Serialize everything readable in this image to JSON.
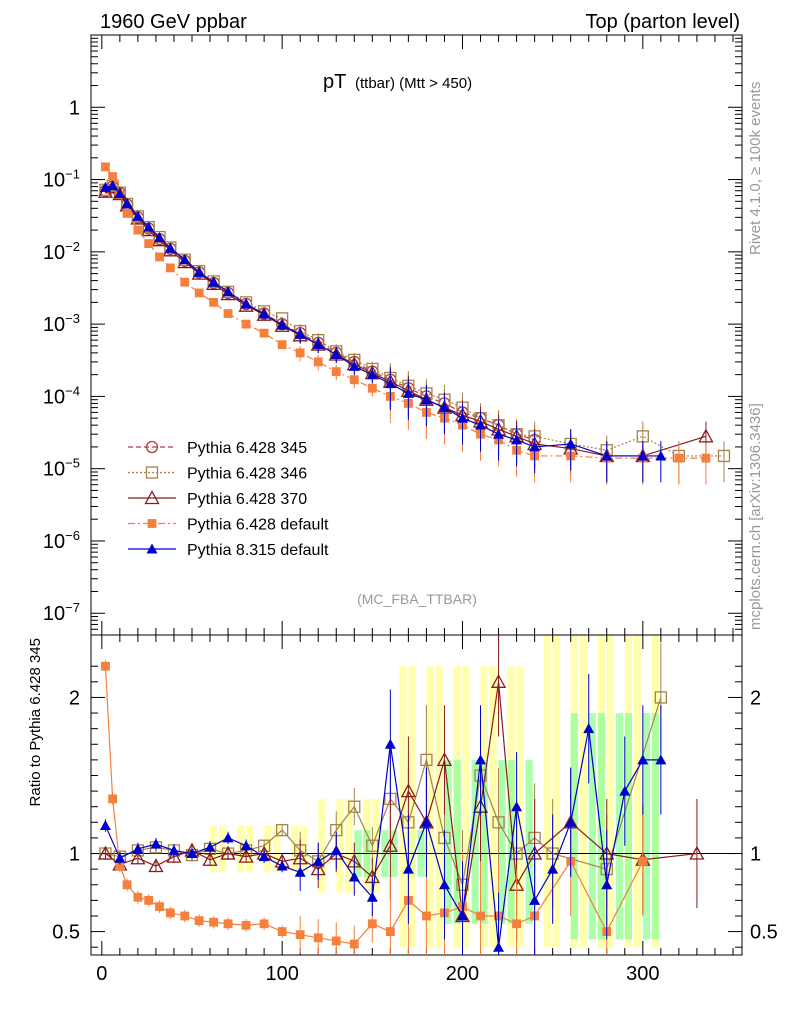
{
  "header": {
    "left_title": "1960 GeV ppbar",
    "right_title": "Top (parton level)"
  },
  "side_labels": {
    "rivet": "Rivet 4.1.0, ≥ 100k events",
    "mcplots": "mcplots.cern.ch [arXiv:1306.3436]"
  },
  "chart_data": [
    {
      "type": "scatter",
      "title": "pT (ttbar) (Mtt > 450)",
      "title_main": "pT",
      "title_sub": "(ttbar) (Mtt > 450)",
      "analysis_tag": "(MC_FBA_TTBAR)",
      "xlabel": "",
      "ylabel": "",
      "yscale": "log",
      "xlim": [
        -6,
        355
      ],
      "ylim": [
        5e-08,
        10
      ],
      "y_tick_labels": [
        "10^-7",
        "10^-6",
        "10^-5",
        "10^-4",
        "10^-3",
        "10^-2",
        "10^-1",
        "1"
      ],
      "legend_position": "bottom-left",
      "series": [
        {
          "name": "Pythia 6.428 345",
          "color": "#b23a48",
          "marker": "open-circle",
          "line": "dashed",
          "x": [
            2,
            6,
            10,
            14,
            20,
            26,
            32,
            38,
            46,
            54,
            62,
            70,
            80,
            90,
            100,
            110,
            120,
            130,
            140,
            150,
            160,
            170,
            180,
            190,
            200,
            210,
            220,
            230,
            240
          ],
          "y": [
            0.07,
            0.08,
            0.065,
            0.045,
            0.03,
            0.021,
            0.015,
            0.011,
            0.0075,
            0.0052,
            0.0037,
            0.0027,
            0.0019,
            0.0014,
            0.001,
            0.00075,
            0.00055,
            0.0004,
            0.0003,
            0.00022,
            0.00017,
            0.00013,
            0.0001,
            8e-05,
            6e-05,
            5e-05,
            4e-05,
            3e-05,
            2.5e-05
          ]
        },
        {
          "name": "Pythia 6.428 346",
          "color": "#a5834a",
          "marker": "open-square",
          "line": "dotted",
          "x": [
            2,
            6,
            10,
            14,
            20,
            26,
            32,
            38,
            46,
            54,
            62,
            70,
            80,
            90,
            100,
            110,
            120,
            130,
            140,
            150,
            160,
            170,
            180,
            190,
            200,
            210,
            220,
            230,
            240,
            260,
            280,
            300,
            320,
            345
          ],
          "y": [
            0.072,
            0.082,
            0.066,
            0.046,
            0.031,
            0.022,
            0.016,
            0.0115,
            0.0078,
            0.0054,
            0.0039,
            0.0028,
            0.002,
            0.0015,
            0.0012,
            0.0008,
            0.0006,
            0.00042,
            0.00032,
            0.00024,
            0.00018,
            0.00014,
            0.00011,
            9e-05,
            7e-05,
            5e-05,
            4e-05,
            3e-05,
            2.8e-05,
            2.2e-05,
            1.8e-05,
            2.8e-05,
            1.5e-05,
            1.5e-05
          ]
        },
        {
          "name": "Pythia 6.428 370",
          "color": "#8b1a1a",
          "marker": "open-triangle",
          "line": "solid",
          "x": [
            2,
            6,
            10,
            14,
            20,
            26,
            32,
            38,
            46,
            54,
            62,
            70,
            80,
            90,
            100,
            110,
            120,
            130,
            140,
            150,
            160,
            170,
            180,
            190,
            200,
            210,
            220,
            230,
            240,
            260,
            280,
            300,
            335
          ],
          "y": [
            0.068,
            0.078,
            0.063,
            0.044,
            0.029,
            0.02,
            0.0145,
            0.0105,
            0.0072,
            0.005,
            0.0036,
            0.0026,
            0.0018,
            0.00135,
            0.00095,
            0.0007,
            0.00052,
            0.00038,
            0.00028,
            0.00021,
            0.00016,
            0.00012,
            9e-05,
            7e-05,
            5.5e-05,
            4.5e-05,
            3.5e-05,
            2.8e-05,
            2.2e-05,
            1.9e-05,
            1.5e-05,
            1.5e-05,
            2.8e-05
          ]
        },
        {
          "name": "Pythia 6.428 default",
          "color": "#f57f3c",
          "marker": "filled-square",
          "line": "dashdot",
          "x": [
            2,
            6,
            10,
            14,
            20,
            26,
            32,
            38,
            46,
            54,
            62,
            70,
            80,
            90,
            100,
            110,
            120,
            130,
            140,
            150,
            160,
            170,
            180,
            190,
            200,
            210,
            220,
            230,
            240,
            260,
            280,
            300,
            320,
            335
          ],
          "y": [
            0.15,
            0.11,
            0.062,
            0.034,
            0.02,
            0.013,
            0.0085,
            0.006,
            0.0038,
            0.0027,
            0.002,
            0.0014,
            0.001,
            0.00075,
            0.00052,
            0.0004,
            0.0003,
            0.00022,
            0.00017,
            0.00013,
            0.0001,
            8e-05,
            6e-05,
            5e-05,
            4e-05,
            3e-05,
            2.5e-05,
            1.8e-05,
            1.5e-05,
            1.5e-05,
            1.4e-05,
            1.4e-05,
            1.4e-05,
            1.4e-05
          ]
        },
        {
          "name": "Pythia 8.315 default",
          "color": "#0000cc",
          "marker": "filled-triangle",
          "line": "solid",
          "x": [
            2,
            6,
            10,
            14,
            20,
            26,
            32,
            38,
            46,
            54,
            62,
            70,
            80,
            90,
            100,
            110,
            120,
            130,
            140,
            150,
            160,
            170,
            180,
            190,
            200,
            210,
            220,
            230,
            240,
            260,
            280,
            300,
            310
          ],
          "y": [
            0.078,
            0.082,
            0.064,
            0.046,
            0.031,
            0.022,
            0.0158,
            0.0112,
            0.0078,
            0.0052,
            0.0038,
            0.0028,
            0.0019,
            0.00138,
            0.00097,
            0.00072,
            0.00052,
            0.00038,
            0.00026,
            0.0002,
            0.00015,
            0.00011,
            9e-05,
            7e-05,
            5e-05,
            4e-05,
            3e-05,
            2.5e-05,
            2e-05,
            2.2e-05,
            1.5e-05,
            1.5e-05,
            1.5e-05
          ]
        }
      ]
    },
    {
      "type": "scatter",
      "title": "",
      "xlabel": "",
      "ylabel": "Ratio to Pythia 6.428 345",
      "yscale": "linear",
      "xlim": [
        -6,
        355
      ],
      "ylim": [
        0.35,
        2.4
      ],
      "x_ticks": [
        0,
        100,
        200,
        300
      ],
      "y_ticks": [
        0.5,
        1,
        2
      ],
      "reference_line": 1,
      "series": [
        {
          "name": "Pythia 6.428 346",
          "color": "#a5834a",
          "x": [
            2,
            10,
            20,
            30,
            40,
            50,
            60,
            70,
            80,
            90,
            100,
            110,
            120,
            130,
            140,
            150,
            160,
            170,
            180,
            190,
            200,
            210,
            220,
            230,
            240,
            250,
            280,
            310
          ],
          "y": [
            1.0,
            0.98,
            1.02,
            1.04,
            1.02,
            0.99,
            1.03,
            1.0,
            1.02,
            1.05,
            1.15,
            1.02,
            0.95,
            1.15,
            1.3,
            1.05,
            1.35,
            1.2,
            1.6,
            1.1,
            0.8,
            1.5,
            1.2,
            1.0,
            1.1,
            1.0,
            0.9,
            2.0
          ]
        },
        {
          "name": "Pythia 6.428 370",
          "color": "#8b1a1a",
          "x": [
            2,
            10,
            20,
            30,
            40,
            50,
            60,
            70,
            80,
            90,
            100,
            110,
            120,
            130,
            140,
            150,
            160,
            170,
            180,
            190,
            200,
            210,
            220,
            230,
            240,
            260,
            280,
            300,
            330
          ],
          "y": [
            1.0,
            0.93,
            0.97,
            0.92,
            0.98,
            1.02,
            0.96,
            1.0,
            0.98,
            1.0,
            0.95,
            0.97,
            0.9,
            1.0,
            0.95,
            0.85,
            1.05,
            1.4,
            1.2,
            1.6,
            0.6,
            1.3,
            2.1,
            0.8,
            1.0,
            1.2,
            1.0,
            0.96,
            1.0
          ]
        },
        {
          "name": "Pythia 6.428 default",
          "color": "#f57f3c",
          "x": [
            2,
            6,
            10,
            14,
            20,
            26,
            32,
            38,
            46,
            54,
            62,
            70,
            80,
            90,
            100,
            110,
            120,
            130,
            140,
            150,
            160,
            170,
            180,
            190,
            200,
            210,
            220,
            230,
            240,
            260,
            280,
            300
          ],
          "y": [
            2.2,
            1.35,
            0.92,
            0.8,
            0.72,
            0.7,
            0.66,
            0.62,
            0.6,
            0.57,
            0.56,
            0.55,
            0.54,
            0.55,
            0.5,
            0.48,
            0.46,
            0.44,
            0.42,
            0.55,
            0.5,
            0.7,
            0.6,
            0.62,
            0.66,
            0.6,
            0.6,
            0.55,
            0.6,
            0.95,
            0.5,
            0.95
          ]
        },
        {
          "name": "Pythia 8.315 default",
          "color": "#0000cc",
          "x": [
            2,
            10,
            20,
            30,
            40,
            50,
            60,
            70,
            80,
            90,
            100,
            110,
            120,
            130,
            140,
            150,
            160,
            170,
            180,
            190,
            200,
            210,
            220,
            230,
            240,
            250,
            260,
            270,
            280,
            290,
            300,
            310
          ],
          "y": [
            1.18,
            0.97,
            1.03,
            1.06,
            1.02,
            1.0,
            1.04,
            1.1,
            1.05,
            0.98,
            0.92,
            0.88,
            0.95,
            1.02,
            0.85,
            0.72,
            1.7,
            0.9,
            1.2,
            0.8,
            0.6,
            1.6,
            0.4,
            1.3,
            0.7,
            0.9,
            1.2,
            1.8,
            0.8,
            1.4,
            1.6,
            1.6
          ]
        }
      ]
    }
  ]
}
